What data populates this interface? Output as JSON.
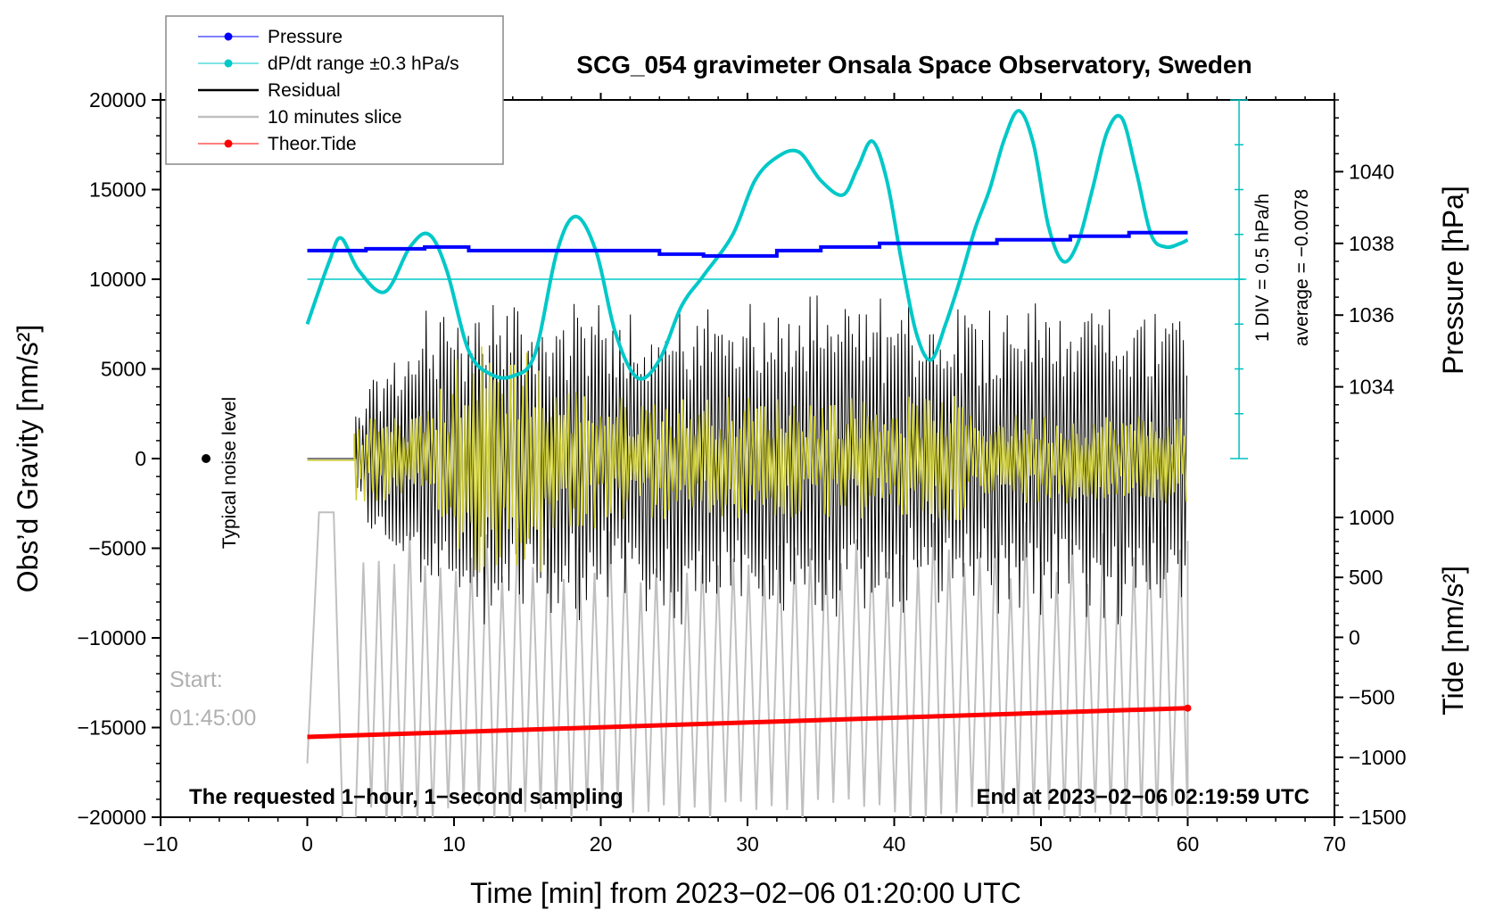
{
  "chart_data": {
    "type": "line",
    "title": "SCG_054 gravimeter Onsala Space Observatory, Sweden",
    "xlabel": "Time [min] from 2023−02−06 01:20:00 UTC",
    "ylabel": "Obs’d Gravity [nm/s²]",
    "y2label": "Pressure [hPa]",
    "y3label": "Tide [nm/s²]",
    "xlim": [
      -10,
      70
    ],
    "ylim": [
      -20000,
      20000
    ],
    "pressure_lim": [
      1032,
      1042
    ],
    "tide_lim": [
      -1500,
      1000
    ],
    "x_ticks": [
      -10,
      0,
      10,
      20,
      30,
      40,
      50,
      60,
      70
    ],
    "x_tick_labels": [
      "−10",
      "0",
      "10",
      "20",
      "30",
      "40",
      "50",
      "60",
      "70"
    ],
    "y_ticks": [
      -20000,
      -15000,
      -10000,
      -5000,
      0,
      5000,
      10000,
      15000,
      20000
    ],
    "y_tick_labels": [
      "−20000",
      "−15000",
      "−10000",
      "−5000",
      "0",
      "5000",
      "10000",
      "15000",
      "20000"
    ],
    "pressure_ticks": [
      1034,
      1036,
      1038,
      1040
    ],
    "pressure_tick_labels": [
      "1034",
      "1036",
      "1038",
      "1040"
    ],
    "tide_ticks": [
      -1500,
      -1000,
      -500,
      0,
      500,
      1000
    ],
    "tide_tick_labels": [
      "−1500",
      "−1000",
      "−500",
      "0",
      "500",
      "1000"
    ],
    "legend": [
      {
        "label": "Pressure",
        "color": "#0000ff",
        "marker": true
      },
      {
        "label": "dP/dt range ±0.3 hPa/s",
        "color": "#00c8c8",
        "marker": true
      },
      {
        "label": "Residual",
        "color": "#000000",
        "marker": false
      },
      {
        "label": "10 minutes slice",
        "color": "#c0c0c0",
        "marker": false
      },
      {
        "label": "Theor.Tide",
        "color": "#ff0000",
        "marker": true
      }
    ],
    "series": [
      {
        "name": "Pressure",
        "axis": "pressure",
        "color": "#0000ff",
        "x": [
          0,
          3,
          4,
          8,
          11,
          24,
          27,
          32,
          35,
          39,
          43,
          47,
          52,
          56,
          60
        ],
        "values": [
          1037.8,
          1037.8,
          1037.85,
          1037.9,
          1037.8,
          1037.7,
          1037.65,
          1037.8,
          1037.9,
          1038.0,
          1038.0,
          1038.1,
          1038.2,
          1038.3,
          1038.3
        ]
      },
      {
        "name": "dP/dt",
        "axis": "gravity",
        "color": "#00c8c8",
        "x": [
          0,
          1.5,
          2.3,
          3.5,
          5.3,
          7,
          8.3,
          9.5,
          11,
          12.5,
          14,
          15.5,
          17,
          18.3,
          19.7,
          21,
          22.5,
          24,
          25.5,
          27,
          29,
          30.5,
          32,
          33.5,
          35,
          36.5,
          37.5,
          38.5,
          39.5,
          40.5,
          41.5,
          42.5,
          43.5,
          44.5,
          45.5,
          46.5,
          47.5,
          48.5,
          49.5,
          50.5,
          51.5,
          52.5,
          53.5,
          54.5,
          55.5,
          56.5,
          57.5,
          58.5,
          59.5,
          60
        ],
        "values": [
          7500,
          11000,
          12300,
          10500,
          9300,
          11800,
          12500,
          10500,
          6000,
          4700,
          4600,
          5800,
          11500,
          13500,
          11500,
          7000,
          4500,
          5500,
          8500,
          10200,
          12500,
          15500,
          16800,
          17100,
          15500,
          14700,
          16200,
          17700,
          15500,
          11000,
          7000,
          5500,
          7500,
          10000,
          12800,
          15000,
          17800,
          19400,
          17500,
          13000,
          11000,
          12000,
          15000,
          18200,
          19000,
          16000,
          12500,
          11800,
          12000,
          12200
        ]
      },
      {
        "name": "Residual",
        "axis": "gravity",
        "color": "#000000",
        "note": "oscillation envelope approx ±9500 nm/s², min 3 to 60"
      },
      {
        "name": "10 minutes slice",
        "axis": "gravity",
        "color": "#c0c0c0",
        "note": "oscillation between approx −20000 and −3000 nm/s²"
      },
      {
        "name": "Theor.Tide",
        "axis": "tide",
        "color": "#ff0000",
        "x": [
          0,
          60
        ],
        "values": [
          -830,
          -590
        ]
      }
    ],
    "reference_line": {
      "axis": "gravity",
      "value": 10000,
      "color": "#00c8c8"
    },
    "annotations": {
      "scale_note_line1": "1 DIV = 0.5 hPa/h",
      "scale_note_line2": "average = −0.0078",
      "noise_label": "Typical noise level",
      "start_label": "Start:",
      "start_time": "01:45:00",
      "footer_left": "The requested 1−hour, 1−second sampling",
      "footer_right": "End at 2023−02−06 02:19:59 UTC"
    },
    "grid": false,
    "legend_position": "top-left"
  }
}
